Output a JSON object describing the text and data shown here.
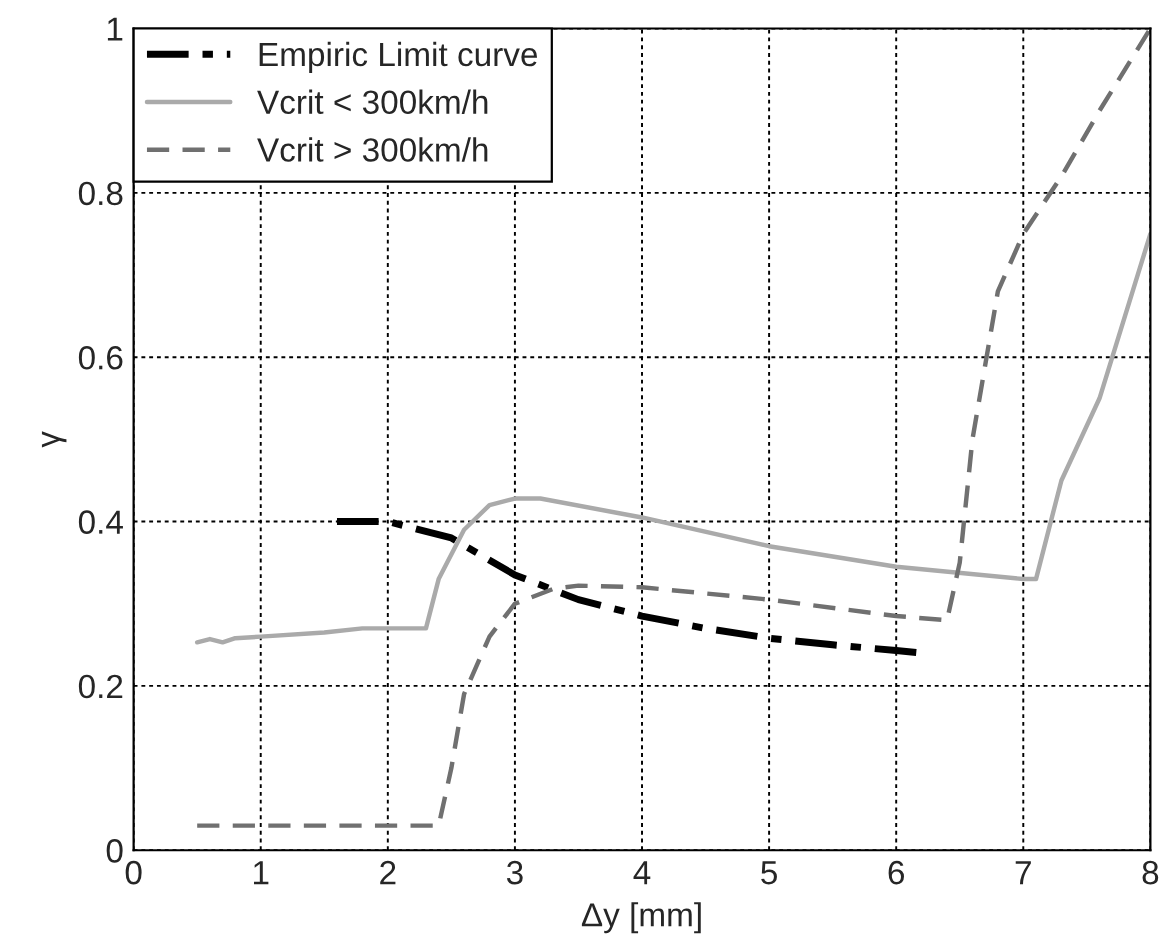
{
  "chart_data": {
    "type": "line",
    "xlabel": "Δy [mm]",
    "ylabel": "γ",
    "xlim": [
      0,
      8
    ],
    "ylim": [
      0,
      1
    ],
    "xticks": [
      0,
      1,
      2,
      3,
      4,
      5,
      6,
      7,
      8
    ],
    "yticks": [
      0,
      0.2,
      0.4,
      0.6,
      0.8,
      1
    ],
    "grid": true,
    "legend": "top left",
    "marker": "none",
    "series": [
      {
        "name": "Empiric Limit curve",
        "color": "#000000",
        "line_style": "dashdot",
        "x": [
          1.6,
          2.0,
          2.5,
          3.0,
          3.5,
          4.0,
          4.5,
          5.0,
          5.5,
          6.0,
          6.2
        ],
        "values": [
          0.4,
          0.4,
          0.38,
          0.335,
          0.305,
          0.285,
          0.27,
          0.258,
          0.25,
          0.243,
          0.24
        ]
      },
      {
        "name": "Vcrit < 300km/h",
        "color": "#aaaaaa",
        "line_style": "solid",
        "x": [
          0.5,
          0.6,
          0.7,
          0.8,
          1.0,
          1.5,
          1.8,
          2.3,
          2.4,
          2.6,
          2.8,
          3.0,
          3.2,
          4.0,
          5.0,
          6.0,
          7.0,
          7.1,
          7.3,
          7.6,
          8.0
        ],
        "values": [
          0.253,
          0.257,
          0.253,
          0.258,
          0.26,
          0.265,
          0.27,
          0.27,
          0.33,
          0.39,
          0.42,
          0.428,
          0.428,
          0.405,
          0.37,
          0.345,
          0.33,
          0.33,
          0.45,
          0.55,
          0.75
        ]
      },
      {
        "name": "Vcrit > 300km/h",
        "color": "#707070",
        "line_style": "dashed",
        "x": [
          0.5,
          2.4,
          2.5,
          2.6,
          2.8,
          3.0,
          3.3,
          3.5,
          4.0,
          5.0,
          6.0,
          6.4,
          6.5,
          6.6,
          6.8,
          7.0,
          7.3,
          7.6,
          8.0
        ],
        "values": [
          0.03,
          0.03,
          0.1,
          0.19,
          0.26,
          0.3,
          0.318,
          0.322,
          0.32,
          0.305,
          0.285,
          0.28,
          0.35,
          0.5,
          0.68,
          0.75,
          0.82,
          0.9,
          1.0
        ]
      }
    ]
  }
}
